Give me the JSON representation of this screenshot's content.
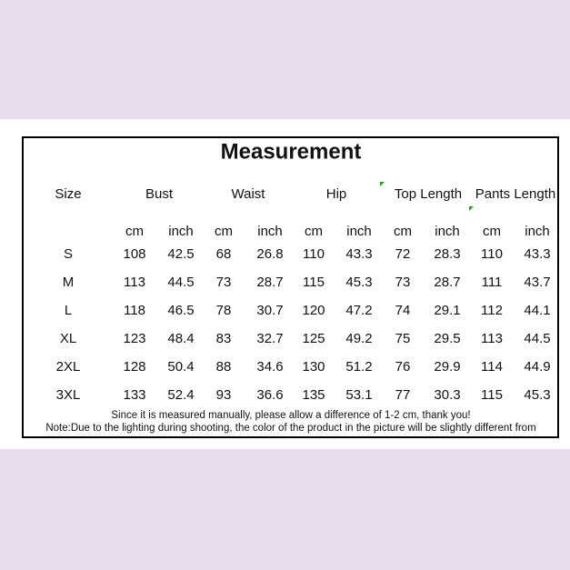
{
  "title": "Measurement",
  "headers": [
    "Size",
    "Bust",
    "Waist",
    "Hip",
    "Top Length",
    "Pants Length"
  ],
  "units": [
    "cm",
    "inch",
    "cm",
    "inch",
    "cm",
    "inch",
    "cm",
    "inch",
    "cm",
    "inch"
  ],
  "rows": [
    [
      "S",
      "108",
      "42.5",
      "68",
      "26.8",
      "110",
      "43.3",
      "72",
      "28.3",
      "110",
      "43.3"
    ],
    [
      "M",
      "113",
      "44.5",
      "73",
      "28.7",
      "115",
      "45.3",
      "73",
      "28.7",
      "111",
      "43.7"
    ],
    [
      "L",
      "118",
      "46.5",
      "78",
      "30.7",
      "120",
      "47.2",
      "74",
      "29.1",
      "112",
      "44.1"
    ],
    [
      "XL",
      "123",
      "48.4",
      "83",
      "32.7",
      "125",
      "49.2",
      "75",
      "29.5",
      "113",
      "44.5"
    ],
    [
      "2XL",
      "128",
      "50.4",
      "88",
      "34.6",
      "130",
      "51.2",
      "76",
      "29.9",
      "114",
      "44.9"
    ],
    [
      "3XL",
      "133",
      "52.4",
      "93",
      "36.6",
      "135",
      "53.1",
      "77",
      "30.3",
      "115",
      "45.3"
    ]
  ],
  "notes": [
    "Since it is measured manually, please allow a difference of 1-2 cm, thank you!",
    "Note:Due to the lighting during shooting, the color of the product in the picture will be slightly different from"
  ]
}
